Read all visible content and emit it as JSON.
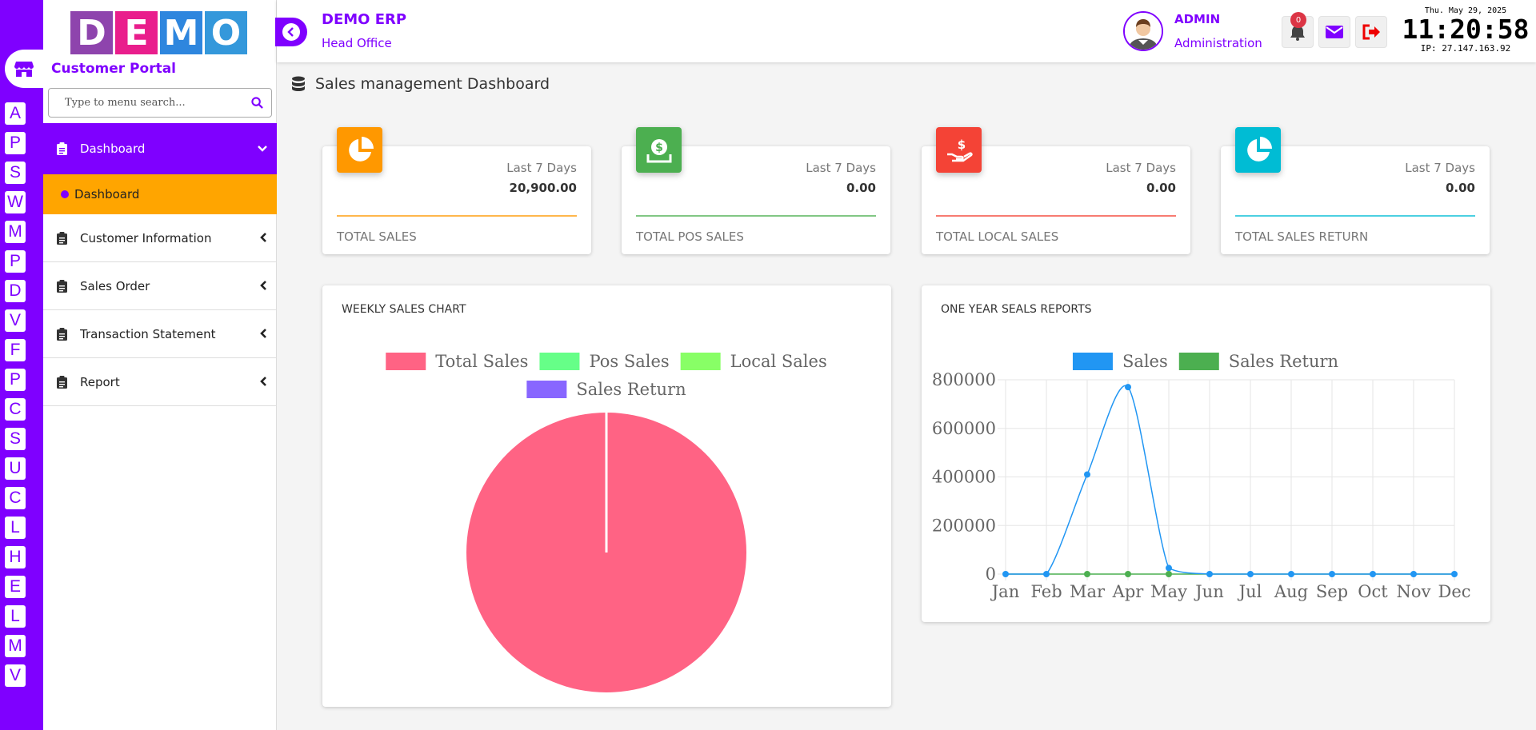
{
  "rail": {
    "letters": [
      "A",
      "P",
      "S",
      "W",
      "M",
      "P",
      "D",
      "V",
      "F",
      "P",
      "C",
      "S",
      "U",
      "C",
      "L",
      "H",
      "E",
      "L",
      "M",
      "V"
    ]
  },
  "sidebar": {
    "logo_letters": [
      "D",
      "E",
      "M",
      "O"
    ],
    "logo_colors": [
      "#8e44ad",
      "#e91e8c",
      "#2e86de",
      "#3498db"
    ],
    "portal_title": "Customer Portal",
    "search_placeholder": "Type to menu search...",
    "menu": [
      {
        "label": "Dashboard",
        "active": true
      },
      {
        "label": "Dashboard",
        "sub": true
      },
      {
        "label": "Customer Information"
      },
      {
        "label": "Sales Order"
      },
      {
        "label": "Transaction Statement"
      },
      {
        "label": "Report"
      }
    ]
  },
  "header": {
    "company_name": "DEMO ERP",
    "branch": "Head Office",
    "user_name": "ADMIN",
    "user_role": "Administration",
    "notification_count": "0",
    "date": "Thu. May 29, 2025",
    "time": "11:20:58",
    "ip": "IP: 27.147.163.92"
  },
  "main": {
    "page_title": "Sales management Dashboard",
    "cards": [
      {
        "period": "Last 7 Days",
        "value": "20,900.00",
        "label": "TOTAL SALES",
        "color": "#ff9800",
        "icon": "pie-chart-icon"
      },
      {
        "period": "Last 7 Days",
        "value": "0.00",
        "label": "TOTAL POS SALES",
        "color": "#4caf50",
        "icon": "money-download-icon"
      },
      {
        "period": "Last 7 Days",
        "value": "0.00",
        "label": "TOTAL LOCAL SALES",
        "color": "#f44336",
        "icon": "hand-dollar-icon"
      },
      {
        "period": "Last 7 Days",
        "value": "0.00",
        "label": "TOTAL SALES RETURN",
        "color": "#00bcd4",
        "icon": "pie-chart-icon"
      }
    ],
    "weekly_title": "WEEKLY SALES CHART",
    "yearly_title": "ONE YEAR SEALS REPORTS"
  },
  "chart_data": [
    {
      "type": "pie",
      "title": "WEEKLY SALES CHART",
      "legend_position": "top",
      "labels": [
        "Total Sales",
        "Pos Sales",
        "Local Sales",
        "Sales Return"
      ],
      "values": [
        20900,
        0,
        0,
        0
      ],
      "colors": [
        "#ff6384",
        "#66ff88",
        "#88ff66",
        "#8866ff"
      ]
    },
    {
      "type": "line",
      "title": "ONE YEAR SEALS REPORTS",
      "legend_position": "top",
      "grid": true,
      "categories": [
        "Jan",
        "Feb",
        "Mar",
        "Apr",
        "May",
        "Jun",
        "Jul",
        "Aug",
        "Sep",
        "Oct",
        "Nov",
        "Dec"
      ],
      "ylim": [
        0,
        800000
      ],
      "yticks": [
        0,
        200000,
        400000,
        600000,
        800000
      ],
      "series": [
        {
          "name": "Sales",
          "color": "#2196f3",
          "values": [
            0,
            0,
            410000,
            770000,
            25000,
            0,
            0,
            0,
            0,
            0,
            0,
            0
          ]
        },
        {
          "name": "Sales Return",
          "color": "#4caf50",
          "values": [
            0,
            0,
            0,
            0,
            0,
            0,
            0,
            0,
            0,
            0,
            0,
            0
          ]
        }
      ]
    }
  ]
}
